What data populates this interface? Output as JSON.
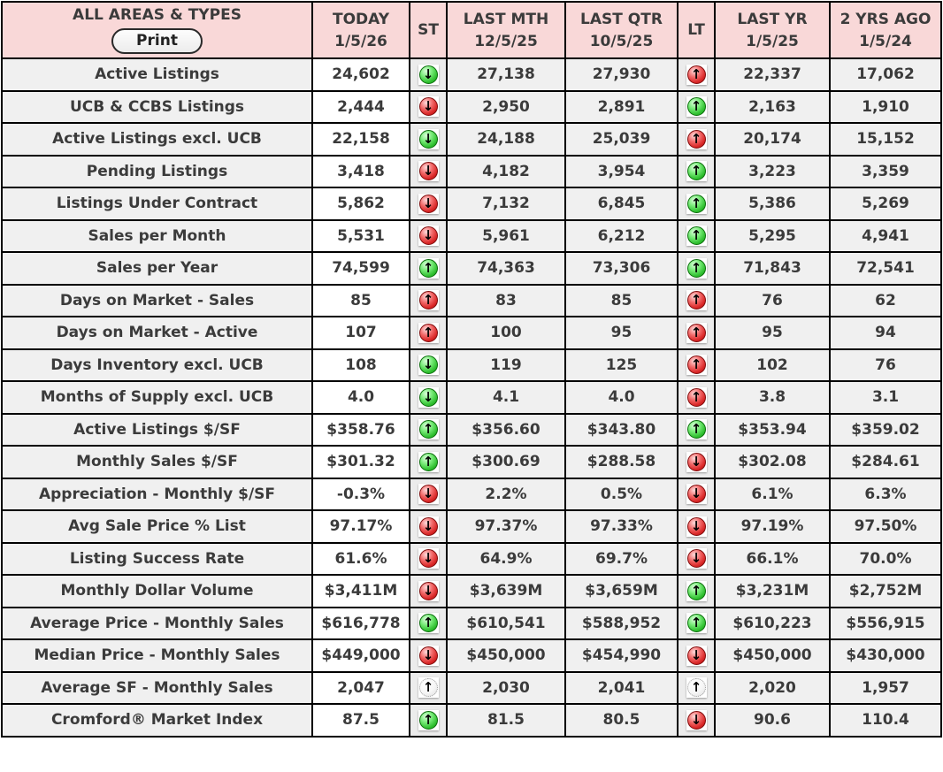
{
  "header": {
    "area_label": "ALL AREAS & TYPES",
    "print_label": "Print",
    "columns": [
      {
        "label": "TODAY",
        "date": "1/5/26"
      },
      {
        "label": "ST",
        "date": ""
      },
      {
        "label": "LAST MTH",
        "date": "12/5/25"
      },
      {
        "label": "LAST QTR",
        "date": "10/5/25"
      },
      {
        "label": "LT",
        "date": ""
      },
      {
        "label": "LAST YR",
        "date": "1/5/25"
      },
      {
        "label": "2 YRS AGO",
        "date": "1/5/24"
      }
    ]
  },
  "colors": {
    "header_pink": "#f9d8d8",
    "row_gray": "#f0f0f0",
    "today_white": "#ffffff",
    "border_black": "#000000",
    "text": "#3b3b3b",
    "trend_green": "#2fbf2f",
    "trend_red": "#d92626",
    "trend_neutral": "#ffffff"
  },
  "rows": [
    {
      "label": "Active Listings",
      "today": "24,602",
      "st": "green-down",
      "last_mth": "27,138",
      "last_qtr": "27,930",
      "lt": "red-up",
      "last_yr": "22,337",
      "two_yrs_ago": "17,062"
    },
    {
      "label": "UCB & CCBS Listings",
      "today": "2,444",
      "st": "red-down",
      "last_mth": "2,950",
      "last_qtr": "2,891",
      "lt": "green-up",
      "last_yr": "2,163",
      "two_yrs_ago": "1,910"
    },
    {
      "label": "Active Listings excl. UCB",
      "today": "22,158",
      "st": "green-down",
      "last_mth": "24,188",
      "last_qtr": "25,039",
      "lt": "red-up",
      "last_yr": "20,174",
      "two_yrs_ago": "15,152"
    },
    {
      "label": "Pending Listings",
      "today": "3,418",
      "st": "red-down",
      "last_mth": "4,182",
      "last_qtr": "3,954",
      "lt": "green-up",
      "last_yr": "3,223",
      "two_yrs_ago": "3,359"
    },
    {
      "label": "Listings Under Contract",
      "today": "5,862",
      "st": "red-down",
      "last_mth": "7,132",
      "last_qtr": "6,845",
      "lt": "green-up",
      "last_yr": "5,386",
      "two_yrs_ago": "5,269"
    },
    {
      "label": "Sales per Month",
      "today": "5,531",
      "st": "red-down",
      "last_mth": "5,961",
      "last_qtr": "6,212",
      "lt": "green-up",
      "last_yr": "5,295",
      "two_yrs_ago": "4,941"
    },
    {
      "label": "Sales per Year",
      "today": "74,599",
      "st": "green-up",
      "last_mth": "74,363",
      "last_qtr": "73,306",
      "lt": "green-up",
      "last_yr": "71,843",
      "two_yrs_ago": "72,541"
    },
    {
      "label": "Days on Market - Sales",
      "today": "85",
      "st": "red-up",
      "last_mth": "83",
      "last_qtr": "85",
      "lt": "red-up",
      "last_yr": "76",
      "two_yrs_ago": "62"
    },
    {
      "label": "Days on Market - Active",
      "today": "107",
      "st": "red-up",
      "last_mth": "100",
      "last_qtr": "95",
      "lt": "red-up",
      "last_yr": "95",
      "two_yrs_ago": "94"
    },
    {
      "label": "Days Inventory excl. UCB",
      "today": "108",
      "st": "green-down",
      "last_mth": "119",
      "last_qtr": "125",
      "lt": "red-up",
      "last_yr": "102",
      "two_yrs_ago": "76"
    },
    {
      "label": "Months of Supply excl. UCB",
      "today": "4.0",
      "st": "green-down",
      "last_mth": "4.1",
      "last_qtr": "4.0",
      "lt": "red-up",
      "last_yr": "3.8",
      "two_yrs_ago": "3.1"
    },
    {
      "label": "Active Listings $/SF",
      "today": "$358.76",
      "st": "green-up",
      "last_mth": "$356.60",
      "last_qtr": "$343.80",
      "lt": "green-up",
      "last_yr": "$353.94",
      "two_yrs_ago": "$359.02"
    },
    {
      "label": "Monthly Sales $/SF",
      "today": "$301.32",
      "st": "green-up",
      "last_mth": "$300.69",
      "last_qtr": "$288.58",
      "lt": "red-down",
      "last_yr": "$302.08",
      "two_yrs_ago": "$284.61"
    },
    {
      "label": "Appreciation - Monthly $/SF",
      "today": "-0.3%",
      "st": "red-down",
      "last_mth": "2.2%",
      "last_qtr": "0.5%",
      "lt": "red-down",
      "last_yr": "6.1%",
      "two_yrs_ago": "6.3%"
    },
    {
      "label": "Avg Sale Price % List",
      "today": "97.17%",
      "st": "red-down",
      "last_mth": "97.37%",
      "last_qtr": "97.33%",
      "lt": "red-down",
      "last_yr": "97.19%",
      "two_yrs_ago": "97.50%"
    },
    {
      "label": "Listing Success Rate",
      "today": "61.6%",
      "st": "red-down",
      "last_mth": "64.9%",
      "last_qtr": "69.7%",
      "lt": "red-down",
      "last_yr": "66.1%",
      "two_yrs_ago": "70.0%"
    },
    {
      "label": "Monthly Dollar Volume",
      "today": "$3,411M",
      "st": "red-down",
      "last_mth": "$3,639M",
      "last_qtr": "$3,659M",
      "lt": "green-up",
      "last_yr": "$3,231M",
      "two_yrs_ago": "$2,752M"
    },
    {
      "label": "Average Price - Monthly Sales",
      "today": "$616,778",
      "st": "green-up",
      "last_mth": "$610,541",
      "last_qtr": "$588,952",
      "lt": "green-up",
      "last_yr": "$610,223",
      "two_yrs_ago": "$556,915"
    },
    {
      "label": "Median Price - Monthly Sales",
      "today": "$449,000",
      "st": "red-down",
      "last_mth": "$450,000",
      "last_qtr": "$454,990",
      "lt": "red-down",
      "last_yr": "$450,000",
      "two_yrs_ago": "$430,000"
    },
    {
      "label": "Average SF - Monthly Sales",
      "today": "2,047",
      "st": "white-up",
      "last_mth": "2,030",
      "last_qtr": "2,041",
      "lt": "white-up",
      "last_yr": "2,020",
      "two_yrs_ago": "1,957"
    },
    {
      "label": "Cromford® Market Index",
      "today": "87.5",
      "st": "green-up",
      "last_mth": "81.5",
      "last_qtr": "80.5",
      "lt": "red-down",
      "last_yr": "90.6",
      "two_yrs_ago": "110.4"
    }
  ]
}
